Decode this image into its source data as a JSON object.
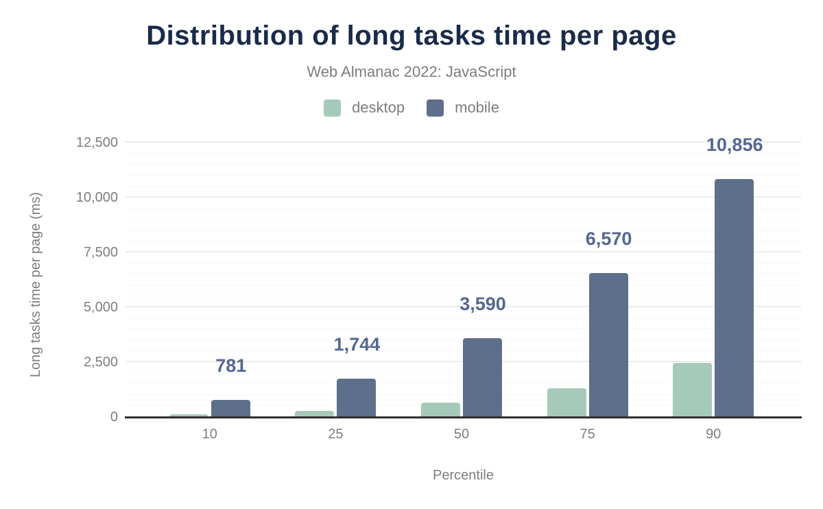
{
  "header": {
    "title": "Distribution of long tasks time per page",
    "subtitle": "Web Almanac 2022: JavaScript"
  },
  "chart_data": {
    "type": "bar",
    "title": "Distribution of long tasks time per page",
    "subtitle": "Web Almanac 2022: JavaScript",
    "categories": [
      "10",
      "25",
      "50",
      "75",
      "90"
    ],
    "series": [
      {
        "name": "desktop",
        "color": "#a6cab9",
        "values": [
          130,
          290,
          660,
          1320,
          2470
        ],
        "values_estimated_from_pixels": true,
        "data_labels_shown": false
      },
      {
        "name": "mobile",
        "color": "#5d6f8a",
        "values": [
          781,
          1744,
          3590,
          6570,
          10856
        ],
        "data_labels_shown": true,
        "data_labels": [
          "781",
          "1,744",
          "3,590",
          "6,570",
          "10,856"
        ]
      }
    ],
    "xlabel": "Percentile",
    "ylabel": "Long tasks time per page (ms)",
    "ylim": [
      0,
      12500
    ],
    "ytick_step": 2500,
    "minor_grid_step": 500,
    "ytick_labels": [
      "0",
      "2,500",
      "5,000",
      "7,500",
      "10,000",
      "12,500"
    ],
    "grid": true,
    "legend_position": "top",
    "legend": [
      {
        "label": "desktop",
        "color": "#a6cab9"
      },
      {
        "label": "mobile",
        "color": "#5d6f8a"
      }
    ]
  },
  "colors": {
    "title": "#1a2b49",
    "muted_text": "#7d7d7d",
    "value_label": "#54688f",
    "axis_line": "#2e2e2e",
    "grid_major": "#ececec",
    "grid_minor": "#f7f7f7",
    "background": "#ffffff"
  }
}
